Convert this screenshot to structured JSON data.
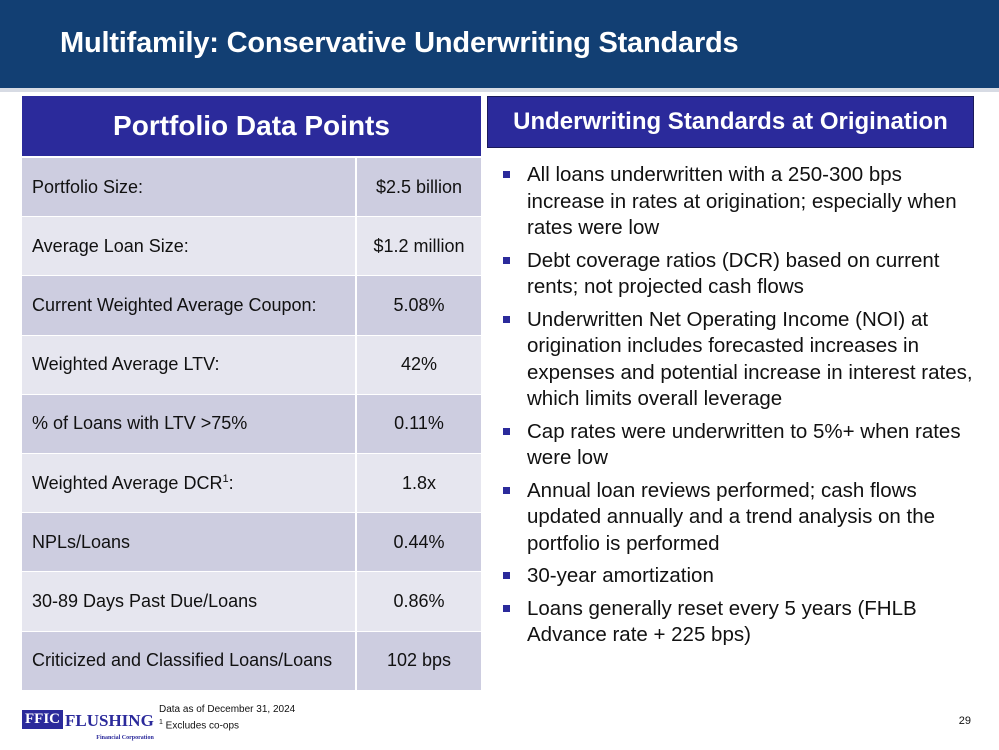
{
  "slide": {
    "title": "Multifamily: Conservative Underwriting Standards",
    "page_number": "29"
  },
  "portfolio": {
    "header": "Portfolio Data Points",
    "rows": [
      {
        "label": "Portfolio Size:",
        "value": "$2.5 billion"
      },
      {
        "label": "Average Loan Size:",
        "value": "$1.2 million"
      },
      {
        "label": "Current Weighted Average Coupon:",
        "value": "5.08%"
      },
      {
        "label": "Weighted Average LTV:",
        "value": "42%"
      },
      {
        "label": "% of Loans with LTV >75%",
        "value": "0.11%"
      },
      {
        "label": "Weighted Average DCR",
        "sup": "1",
        "suffix": ":",
        "value": "1.8x"
      },
      {
        "label": "NPLs/Loans",
        "value": "0.44%"
      },
      {
        "label": "30-89 Days Past Due/Loans",
        "value": "0.86%"
      },
      {
        "label": "Criticized and Classified Loans/Loans",
        "value": "102 bps"
      }
    ]
  },
  "standards": {
    "header": "Underwriting Standards at Origination",
    "bullets": [
      "All loans underwritten with a 250-300 bps increase in rates at origination; especially when rates were low",
      "Debt coverage ratios (DCR) based on current rents; not projected cash flows",
      "Underwritten Net Operating Income (NOI) at origination includes forecasted increases in expenses and potential increase in interest rates, which limits overall leverage",
      "Cap rates were underwritten to 5%+ when rates were low",
      "Annual loan reviews performed; cash flows updated annually and a trend analysis on the portfolio is performed",
      "30-year amortization",
      "Loans generally reset every 5 years (FHLB Advance rate + 225 bps)"
    ]
  },
  "footer": {
    "logo_ffic": "FFIC",
    "logo_name": "FLUSHING",
    "logo_sub": "Financial Corporation",
    "note_date": "Data as of December 31, 2024",
    "note_sup": "1",
    "note_coops": " Excludes co-ops"
  },
  "colors": {
    "title_bar": "#123f73",
    "header_fill": "#2b2a9b",
    "row_odd": "#cdcde0",
    "row_even": "#e6e6ef"
  }
}
